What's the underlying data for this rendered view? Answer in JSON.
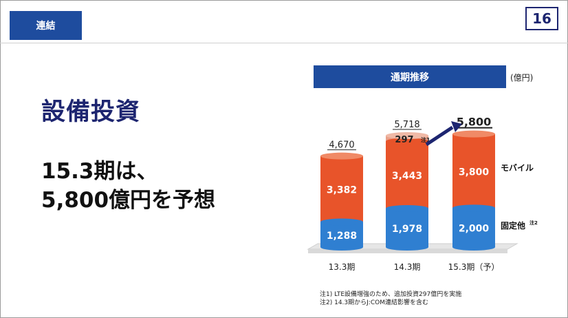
{
  "page": {
    "section_label": "連結",
    "page_number": "16",
    "title": "設備投資",
    "headline_line1": "15.3期は、",
    "headline_line2": "5,800億円を予想"
  },
  "chart_panel": {
    "header": "通期推移",
    "unit": "(億円)",
    "notes": [
      "注1) LTE設備増強のため、追加投資297億円を実施",
      "注2) 14.3期からJ:COM連結影響を含む"
    ],
    "colors": {
      "mobile": "#e8542a",
      "fixed": "#2f7fd1",
      "additional": "#e9a089",
      "arrow": "#1d2570"
    }
  },
  "chart_data": {
    "type": "bar",
    "stacked": true,
    "categories": [
      "13.3期",
      "14.3期",
      "15.3期（予）"
    ],
    "series": [
      {
        "name": "固定他",
        "name_note": "注2",
        "values": [
          1288,
          1978,
          2000
        ],
        "labels": [
          "1,288",
          "1,978",
          "2,000"
        ]
      },
      {
        "name": "モバイル",
        "values": [
          3382,
          3443,
          3800
        ],
        "labels": [
          "3,382",
          "3,443",
          "3,800"
        ]
      },
      {
        "name": "",
        "values": [
          0,
          297,
          0
        ],
        "labels": [
          "",
          "297",
          ""
        ],
        "note": "注1"
      }
    ],
    "totals": [
      4670,
      5718,
      5800
    ],
    "total_labels": [
      "4,670",
      "5,718",
      "5,800"
    ],
    "ylim": [
      0,
      6000
    ],
    "grid": false,
    "legend": "right"
  }
}
